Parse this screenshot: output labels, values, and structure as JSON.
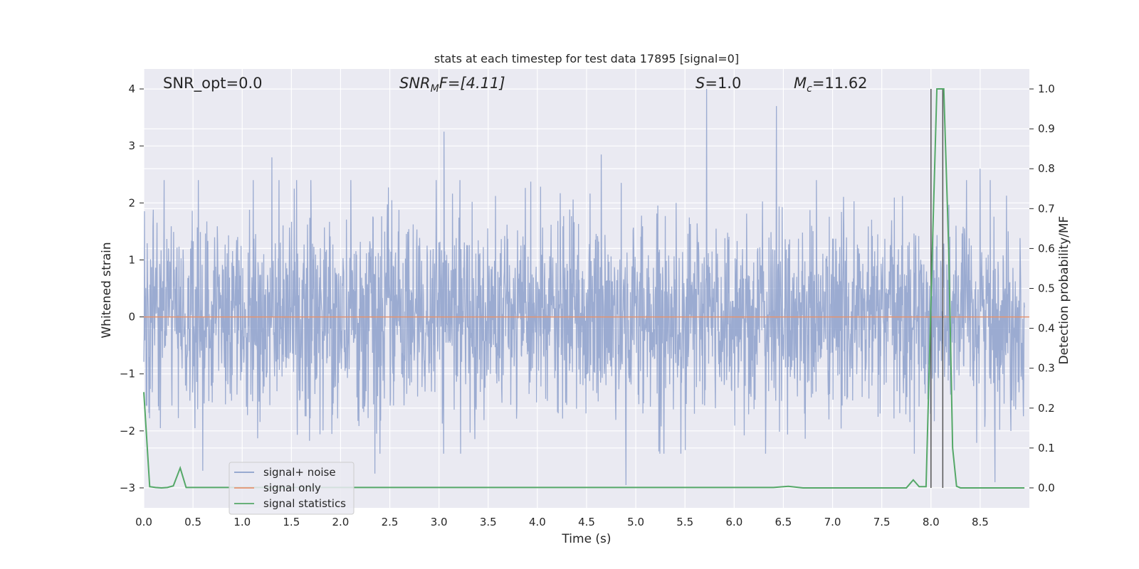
{
  "chart_data": {
    "type": "line",
    "title": "stats at each timestep for test data 17895 [signal=0]",
    "xlabel": "Time (s)",
    "ylabel_left": "Whitened strain",
    "ylabel_right": "Detection probability/MF",
    "xlim": [
      0.0,
      9.0
    ],
    "ylim_left": [
      -3.35,
      4.35
    ],
    "ylim_right": [
      -0.05,
      1.05
    ],
    "x_ticks": [
      0.0,
      0.5,
      1.0,
      1.5,
      2.0,
      2.5,
      3.0,
      3.5,
      4.0,
      4.5,
      5.0,
      5.5,
      6.0,
      6.5,
      7.0,
      7.5,
      8.0,
      8.5
    ],
    "x_tick_labels": [
      "0.0",
      "0.5",
      "1.0",
      "1.5",
      "2.0",
      "2.5",
      "3.0",
      "3.5",
      "4.0",
      "4.5",
      "5.0",
      "5.5",
      "6.0",
      "6.5",
      "7.0",
      "7.5",
      "8.0",
      "8.5"
    ],
    "y_ticks_left": [
      -3,
      -2,
      -1,
      0,
      1,
      2,
      3,
      4
    ],
    "y_tick_labels_left": [
      "−3",
      "−2",
      "−1",
      "0",
      "1",
      "2",
      "3",
      "4"
    ],
    "y_ticks_right": [
      0.0,
      0.1,
      0.2,
      0.3,
      0.4,
      0.5,
      0.6,
      0.7,
      0.8,
      0.9,
      1.0
    ],
    "y_tick_labels_right": [
      "0.0",
      "0.1",
      "0.2",
      "0.3",
      "0.4",
      "0.5",
      "0.6",
      "0.7",
      "0.8",
      "0.9",
      "1.0"
    ],
    "grid": true,
    "legend_position": "lower-left",
    "annotations": [
      {
        "label": "SNR_opt=0.0",
        "x": 0.2,
        "y": 4.05,
        "italic_parts": false
      },
      {
        "label": "SNR_MF=[4.11]",
        "x": 2.6,
        "y": 4.05
      },
      {
        "label": "S=1.0",
        "x": 5.6,
        "y": 4.05
      },
      {
        "label": "M_c=11.62",
        "x": 6.6,
        "y": 4.05
      }
    ],
    "annotation_text": {
      "snr_opt": "SNR_opt=0.0",
      "snr_mf_main": "SNR",
      "snr_mf_sub": "M",
      "snr_mf_rest": "F=[4.11]",
      "s_main": "S",
      "s_rest": "=1.0",
      "mc_main": "M",
      "mc_sub": "c",
      "mc_rest": "=11.62"
    },
    "series": [
      {
        "name": "signal+ noise",
        "axis": "left",
        "color": "#8da0cb",
        "description_values": "whitened noise, roughly within [-3.0, 4.0], dense",
        "peaks": [
          {
            "x": 5.72,
            "y": 4.0
          },
          {
            "x": 6.43,
            "y": 3.7
          },
          {
            "x": 3.05,
            "y": 3.25
          },
          {
            "x": 4.65,
            "y": 2.85
          },
          {
            "x": 1.3,
            "y": 2.8
          },
          {
            "x": 8.5,
            "y": 2.6
          },
          {
            "x": 4.9,
            "y": -2.95
          },
          {
            "x": 8.65,
            "y": -2.9
          },
          {
            "x": 2.35,
            "y": -2.75
          },
          {
            "x": 0.6,
            "y": -2.7
          }
        ]
      },
      {
        "name": "signal only",
        "axis": "left",
        "color": "#e5936f",
        "x": [
          0.0,
          9.0
        ],
        "values": [
          0.0,
          0.0
        ]
      },
      {
        "name": "signal statistics",
        "axis": "right",
        "color": "#55a868",
        "x": [
          0.0,
          0.06,
          0.12,
          0.18,
          0.24,
          0.3,
          0.37,
          0.43,
          0.5,
          1.0,
          2.0,
          3.0,
          4.0,
          5.0,
          6.0,
          6.4,
          6.55,
          6.7,
          7.0,
          7.5,
          7.75,
          7.82,
          7.88,
          7.95,
          8.02,
          8.06,
          8.1,
          8.13,
          8.18,
          8.22,
          8.26,
          8.3,
          8.4,
          8.95
        ],
        "values": [
          0.24,
          0.003,
          0.001,
          0.0,
          0.001,
          0.005,
          0.05,
          0.001,
          0.001,
          0.001,
          0.001,
          0.001,
          0.001,
          0.001,
          0.001,
          0.001,
          0.004,
          0.0,
          0.0,
          0.0,
          0.0,
          0.02,
          0.003,
          0.003,
          0.65,
          1.0,
          1.0,
          1.0,
          0.6,
          0.1,
          0.004,
          0.0,
          0.0,
          0.0
        ]
      }
    ],
    "vertical_lines": [
      {
        "x": 8.0,
        "color": "#555555",
        "y_from": -3.0,
        "y_to": 4.0
      },
      {
        "x": 8.12,
        "color": "#555555",
        "y_from": -3.0,
        "y_to": 4.0
      }
    ],
    "legend": [
      {
        "label": "signal+ noise",
        "color": "#8da0cb"
      },
      {
        "label": "signal only",
        "color": "#e5936f"
      },
      {
        "label": "signal statistics",
        "color": "#55a868"
      }
    ],
    "background_color": "#eaeaf2",
    "grid_color": "#ffffff"
  }
}
